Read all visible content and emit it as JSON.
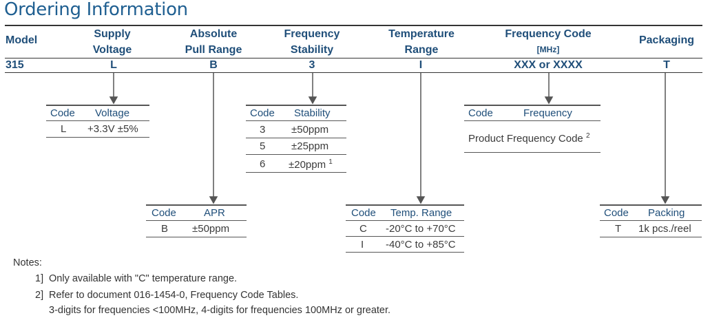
{
  "title": "Ordering Information",
  "columns": [
    {
      "header_line1": "Model",
      "header_line2": "",
      "value": "315"
    },
    {
      "header_line1": "Supply",
      "header_line2": "Voltage",
      "value": "L"
    },
    {
      "header_line1": "Absolute",
      "header_line2": "Pull Range",
      "value": "B"
    },
    {
      "header_line1": "Frequency",
      "header_line2": "Stability",
      "value": "3"
    },
    {
      "header_line1": "Temperature",
      "header_line2": "Range",
      "value": "I"
    },
    {
      "header_line1": "Frequency Code",
      "header_line2": "[MHz]",
      "value": "XXX or XXXX"
    },
    {
      "header_line1": "Packaging",
      "header_line2": "",
      "value": "T"
    }
  ],
  "tables": {
    "voltage": {
      "col1": "Code",
      "col2": "Voltage",
      "rows": [
        {
          "code": "L",
          "desc": "+3.3V ±5%"
        }
      ]
    },
    "apr": {
      "col1": "Code",
      "col2": "APR",
      "rows": [
        {
          "code": "B",
          "desc": "±50ppm"
        }
      ]
    },
    "stability": {
      "col1": "Code",
      "col2": "Stability",
      "rows": [
        {
          "code": "3",
          "desc": "±50ppm",
          "sup": ""
        },
        {
          "code": "5",
          "desc": "±25ppm",
          "sup": ""
        },
        {
          "code": "6",
          "desc": "±20ppm",
          "sup": "1"
        }
      ]
    },
    "temp": {
      "col1": "Code",
      "col2": "Temp. Range",
      "rows": [
        {
          "code": "C",
          "desc": "-20°C to +70°C"
        },
        {
          "code": "I",
          "desc": "-40°C to +85°C"
        }
      ]
    },
    "frequency": {
      "col1": "Code",
      "col2": "Frequency",
      "row_text": "Product Frequency Code",
      "row_sup": "2"
    },
    "packing": {
      "col1": "Code",
      "col2": "Packing",
      "rows": [
        {
          "code": "T",
          "desc": "1k pcs./reel"
        }
      ]
    }
  },
  "notes": {
    "label": "Notes:",
    "note1_num": "1]",
    "note1": "Only available with \"C\" temperature range.",
    "note2_num": "2]",
    "note2": "Refer to document 016-1454-0, Frequency Code Tables.",
    "note2b": "3-digits for frequencies <100MHz, 4-digits for frequencies 100MHz or greater."
  }
}
